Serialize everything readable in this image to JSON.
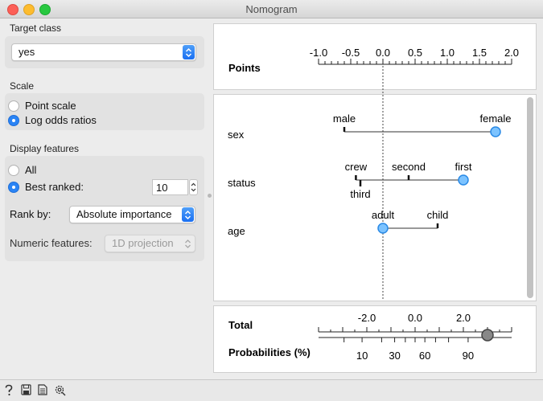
{
  "window": {
    "title": "Nomogram"
  },
  "controls": {
    "target_class": {
      "label": "Target class",
      "value": "yes"
    },
    "scale": {
      "label": "Scale",
      "options": [
        "Point scale",
        "Log odds ratios"
      ],
      "selected": "Log odds ratios"
    },
    "display_features": {
      "label": "Display features",
      "options": [
        "All",
        "Best ranked:"
      ],
      "selected": "Best ranked:",
      "best_ranked_value": "10",
      "rank_by_label": "Rank by:",
      "rank_by_value": "Absolute importance",
      "numeric_label": "Numeric features:",
      "numeric_value": "1D projection"
    }
  },
  "points_axis": {
    "label": "Points",
    "ticks": [
      "-1.0",
      "-0.5",
      "0.0",
      "0.5",
      "1.0",
      "1.5",
      "2.0"
    ]
  },
  "features": [
    {
      "name": "sex",
      "values": [
        {
          "label": "male",
          "points": -0.6
        },
        {
          "label": "female",
          "points": 1.75,
          "selected": true
        }
      ]
    },
    {
      "name": "status",
      "values": [
        {
          "label": "crew",
          "points": -0.42
        },
        {
          "label": "third",
          "points": -0.35
        },
        {
          "label": "second",
          "points": 0.4
        },
        {
          "label": "first",
          "points": 1.25,
          "selected": true
        }
      ]
    },
    {
      "name": "age",
      "values": [
        {
          "label": "adult",
          "points": 0.0,
          "selected": true
        },
        {
          "label": "child",
          "points": 0.85
        }
      ]
    }
  ],
  "total": {
    "label": "Total",
    "ticks": [
      "-2.0",
      "0.0",
      "2.0"
    ],
    "marker_value": 3.0
  },
  "probabilities": {
    "label": "Probabilities (%)",
    "ticks": [
      "10",
      "30",
      "60",
      "90"
    ],
    "marker_value": 91
  },
  "icons": [
    "help-icon",
    "save-icon",
    "report-icon",
    "settings-icon"
  ]
}
